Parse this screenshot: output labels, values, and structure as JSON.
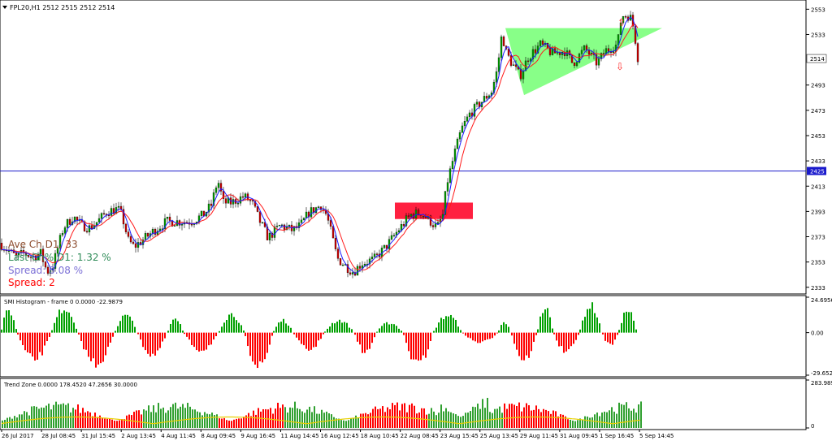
{
  "window": {
    "symbol_label": "FPL20,H1  2512 2515 2512 2514"
  },
  "colors": {
    "background": "#ffffff",
    "panel_bg": "#d9d9d9",
    "bull": "#00a000",
    "bear": "#d00000",
    "ma_fast": "#1a1aff",
    "ma_slow": "#ff1a1a",
    "hline": "#1a1acc",
    "triangle": "#88ff88",
    "zone": "#ff2040",
    "info_ave": "#8b4a2b",
    "info_last": "#2e8b57",
    "info_spread_pct": "#7b6fd6",
    "info_spread": "#ff0000",
    "trend_line": "#e8d000"
  },
  "info": {
    "ave": "Ave Ch D1: 33",
    "last": "Last Ch% D1: 1.32 %",
    "spread_pct": "Spread: 0.08 %",
    "spread": "Spread: 2"
  },
  "markers": {
    "up_arrow": "⇧",
    "down_arrow": "⇩"
  },
  "price_axis": {
    "ticks": [
      "2553",
      "2533",
      "2514",
      "2493",
      "2473",
      "2453",
      "2433",
      "2425",
      "2413",
      "2393",
      "2373",
      "2353",
      "2333"
    ],
    "current_price": "2514",
    "hline_price": "2425"
  },
  "smi_panel": {
    "title": "SMI Histogram - frame 0 0.0000 -22.9879",
    "ticks": [
      "24.6956",
      "0.00",
      "-29.6524"
    ]
  },
  "trend_panel": {
    "title": "Trend Zone 0.0000 178.4520 47.2656 30.0000",
    "ticks": [
      "283.9891",
      "0"
    ]
  },
  "time_axis": {
    "labels": [
      "26 Jul 2017",
      "28 Jul 08:45",
      "31 Jul 15:45",
      "2 Aug 13:45",
      "4 Aug 11:45",
      "8 Aug 09:45",
      "9 Aug 16:45",
      "11 Aug 14:45",
      "16 Aug 12:45",
      "18 Aug 10:45",
      "22 Aug 08:45",
      "23 Aug 15:45",
      "25 Aug 13:45",
      "29 Aug 11:45",
      "31 Aug 09:45",
      "1 Sep 16:45",
      "5 Sep 14:45"
    ]
  },
  "chart_data": {
    "type": "candlestick",
    "symbol": "FPL20",
    "timeframe": "H1",
    "price_range": [
      2329,
      2559
    ],
    "horizontal_line": 2425,
    "price_path": [
      [
        0,
        2368
      ],
      [
        10,
        2362
      ],
      [
        20,
        2357
      ],
      [
        30,
        2360
      ],
      [
        40,
        2357
      ],
      [
        50,
        2360
      ],
      [
        58,
        2345
      ],
      [
        65,
        2350
      ],
      [
        78,
        2380
      ],
      [
        90,
        2389
      ],
      [
        100,
        2382
      ],
      [
        110,
        2380
      ],
      [
        120,
        2385
      ],
      [
        132,
        2393
      ],
      [
        145,
        2395
      ],
      [
        150,
        2390
      ],
      [
        158,
        2370
      ],
      [
        165,
        2365
      ],
      [
        175,
        2370
      ],
      [
        190,
        2378
      ],
      [
        205,
        2385
      ],
      [
        220,
        2385
      ],
      [
        235,
        2385
      ],
      [
        250,
        2390
      ],
      [
        260,
        2398
      ],
      [
        268,
        2418
      ],
      [
        275,
        2400
      ],
      [
        285,
        2400
      ],
      [
        300,
        2405
      ],
      [
        310,
        2400
      ],
      [
        320,
        2385
      ],
      [
        330,
        2372
      ],
      [
        345,
        2382
      ],
      [
        360,
        2378
      ],
      [
        370,
        2382
      ],
      [
        380,
        2392
      ],
      [
        395,
        2398
      ],
      [
        402,
        2390
      ],
      [
        408,
        2375
      ],
      [
        415,
        2356
      ],
      [
        425,
        2350
      ],
      [
        435,
        2345
      ],
      [
        445,
        2352
      ],
      [
        460,
        2355
      ],
      [
        475,
        2365
      ],
      [
        490,
        2378
      ],
      [
        505,
        2390
      ],
      [
        518,
        2392
      ],
      [
        530,
        2385
      ],
      [
        538,
        2380
      ],
      [
        545,
        2390
      ],
      [
        550,
        2415
      ],
      [
        560,
        2440
      ],
      [
        568,
        2458
      ],
      [
        578,
        2470
      ],
      [
        590,
        2478
      ],
      [
        605,
        2488
      ],
      [
        612,
        2505
      ],
      [
        618,
        2535
      ],
      [
        622,
        2520
      ],
      [
        630,
        2510
      ],
      [
        640,
        2500
      ],
      [
        650,
        2515
      ],
      [
        665,
        2525
      ],
      [
        680,
        2518
      ],
      [
        695,
        2520
      ],
      [
        705,
        2510
      ],
      [
        720,
        2522
      ],
      [
        735,
        2510
      ],
      [
        745,
        2520
      ],
      [
        760,
        2525
      ],
      [
        765,
        2548
      ],
      [
        775,
        2548
      ],
      [
        780,
        2538
      ],
      [
        785,
        2515
      ]
    ],
    "ma_fast_offset": 4,
    "ma_slow_offset": 8,
    "triangle": {
      "upper_left": [
        622,
        2538
      ],
      "upper_right": [
        815,
        2538
      ],
      "lower": [
        645,
        2485
      ]
    },
    "zone_box": {
      "x_from": 486,
      "x_to": 582,
      "price_top": 2400,
      "price_bottom": 2387
    },
    "up_marker": {
      "x": 760,
      "price": 2540
    },
    "down_marker": {
      "x": 758,
      "price": 2505
    },
    "smi_histogram": {
      "range": [
        -29.6524,
        24.6956
      ],
      "bars_per_cycle": 20,
      "amplitudes": [
        18,
        -22,
        20,
        -25,
        14,
        -18,
        12,
        -14,
        15,
        -28,
        10,
        -14,
        10,
        -16,
        8,
        -26,
        14,
        -8,
        8,
        -22,
        20,
        -16,
        22,
        -10,
        18,
        -22,
        16,
        -14,
        18,
        -12,
        14,
        -10,
        8,
        -25
      ],
      "segment_starts": [
        0,
        20,
        62,
        95,
        140,
        168,
        205,
        225,
        268,
        300,
        335,
        360,
        398,
        435,
        462,
        495,
        532,
        568,
        612,
        628,
        660,
        680,
        712,
        740,
        760,
        783
      ]
    },
    "trend_zone": {
      "range": [
        0,
        283.9891
      ],
      "series": [
        {
          "name": "Trend Zone",
          "values_desc": "alternating green and red bar bursts"
        }
      ]
    }
  }
}
